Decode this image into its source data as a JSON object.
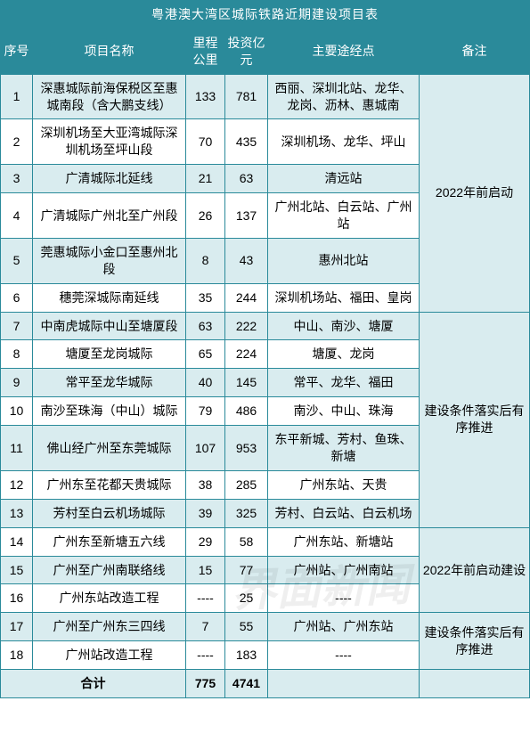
{
  "title": "粤港澳大湾区城际铁路近期建设项目表",
  "columns": {
    "xh": "序号",
    "name": "项目名称",
    "lc": "里程公里",
    "tz": "投资亿元",
    "jd": "主要途经点",
    "bz": "备注"
  },
  "rows": [
    {
      "xh": "1",
      "name": "深惠城际前海保税区至惠城南段（含大鹏支线）",
      "lc": "133",
      "tz": "781",
      "jd": "西丽、深圳北站、龙华、龙岗、沥林、惠城南"
    },
    {
      "xh": "2",
      "name": "深圳机场至大亚湾城际深圳机场至坪山段",
      "lc": "70",
      "tz": "435",
      "jd": "深圳机场、龙华、坪山"
    },
    {
      "xh": "3",
      "name": "广清城际北延线",
      "lc": "21",
      "tz": "63",
      "jd": "清远站"
    },
    {
      "xh": "4",
      "name": "广清城际广州北至广州段",
      "lc": "26",
      "tz": "137",
      "jd": "广州北站、白云站、广州站"
    },
    {
      "xh": "5",
      "name": "莞惠城际小金口至惠州北段",
      "lc": "8",
      "tz": "43",
      "jd": "惠州北站"
    },
    {
      "xh": "6",
      "name": "穗莞深城际南延线",
      "lc": "35",
      "tz": "244",
      "jd": "深圳机场站、福田、皇岗"
    },
    {
      "xh": "7",
      "name": "中南虎城际中山至塘厦段",
      "lc": "63",
      "tz": "222",
      "jd": "中山、南沙、塘厦"
    },
    {
      "xh": "8",
      "name": "塘厦至龙岗城际",
      "lc": "65",
      "tz": "224",
      "jd": "塘厦、龙岗"
    },
    {
      "xh": "9",
      "name": "常平至龙华城际",
      "lc": "40",
      "tz": "145",
      "jd": "常平、龙华、福田"
    },
    {
      "xh": "10",
      "name": "南沙至珠海（中山）城际",
      "lc": "79",
      "tz": "486",
      "jd": "南沙、中山、珠海"
    },
    {
      "xh": "11",
      "name": "佛山经广州至东莞城际",
      "lc": "107",
      "tz": "953",
      "jd": "东平新城、芳村、鱼珠、新塘"
    },
    {
      "xh": "12",
      "name": "广州东至花都天贵城际",
      "lc": "38",
      "tz": "285",
      "jd": "广州东站、天贵"
    },
    {
      "xh": "13",
      "name": "芳村至白云机场城际",
      "lc": "39",
      "tz": "325",
      "jd": "芳村、白云站、白云机场"
    },
    {
      "xh": "14",
      "name": "广州东至新塘五六线",
      "lc": "29",
      "tz": "58",
      "jd": "广州东站、新塘站"
    },
    {
      "xh": "15",
      "name": "广州至广州南联络线",
      "lc": "15",
      "tz": "77",
      "jd": "广州站、广州南站"
    },
    {
      "xh": "16",
      "name": "广州东站改造工程",
      "lc": "----",
      "tz": "25",
      "jd": "----"
    },
    {
      "xh": "17",
      "name": "广州至广州东三四线",
      "lc": "7",
      "tz": "55",
      "jd": "广州站、广州东站"
    },
    {
      "xh": "18",
      "name": "广州站改造工程",
      "lc": "----",
      "tz": "183",
      "jd": "----"
    }
  ],
  "remarks": [
    {
      "text": "2022年前启动",
      "span": 6
    },
    {
      "text": "建设条件落实后有序推进",
      "span": 7
    },
    {
      "text": "2022年前启动建设",
      "span": 3
    },
    {
      "text": "建设条件落实后有序推进",
      "span": 2
    }
  ],
  "total": {
    "label": "合计",
    "lc": "775",
    "tz": "4741",
    "jd": "",
    "bz": ""
  },
  "watermark": "界面新闻",
  "style": {
    "header_bg": "#2a8a9a",
    "header_fg": "#ffffff",
    "odd_bg": "#d9ecef",
    "even_bg": "#ffffff",
    "border": "#2a8a9a",
    "title_fontsize": 22,
    "header_fontsize": 15,
    "cell_fontsize": 14,
    "col_widths": {
      "xh": 36,
      "name": 172,
      "lc": 44,
      "tz": 48,
      "jd": 170
    }
  }
}
